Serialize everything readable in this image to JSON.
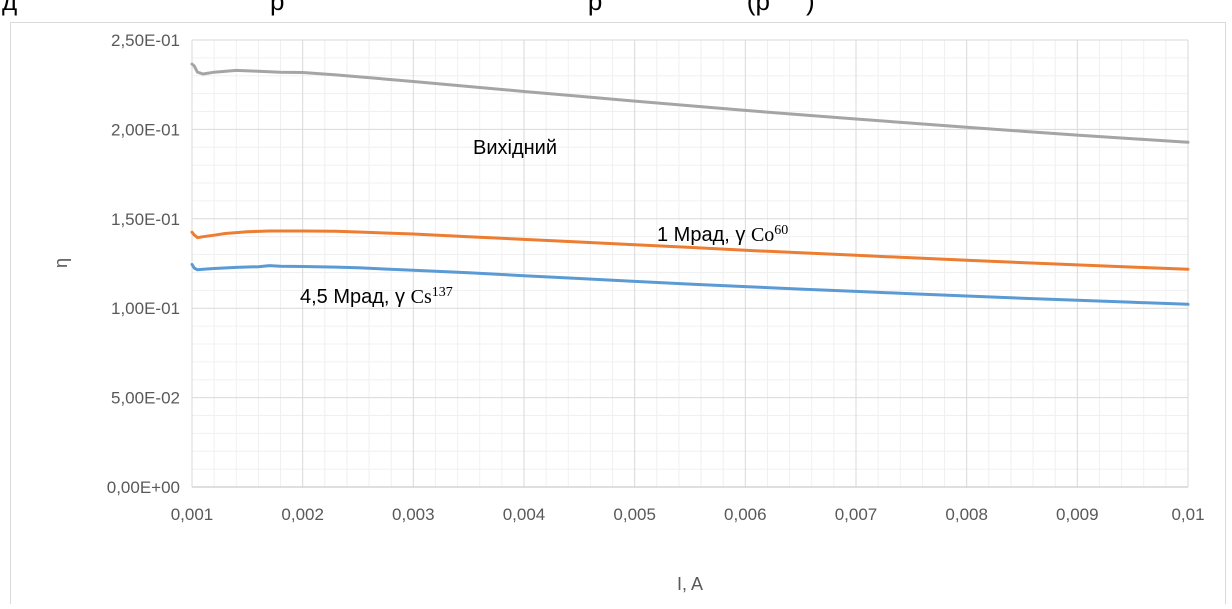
{
  "chart_data": {
    "type": "line",
    "xlabel": "I, A",
    "ylabel": "η",
    "xlim": [
      0.001,
      0.01
    ],
    "ylim": [
      0,
      0.25
    ],
    "grid": true,
    "x_ticks": [
      0.001,
      0.002,
      0.003,
      0.004,
      0.005,
      0.006,
      0.007,
      0.008,
      0.009,
      0.01
    ],
    "x_tick_labels": [
      "0,001",
      "0,002",
      "0,003",
      "0,004",
      "0,005",
      "0,006",
      "0,007",
      "0,008",
      "0,009",
      "0,01"
    ],
    "y_ticks": [
      0,
      0.05,
      0.1,
      0.15,
      0.2,
      0.25
    ],
    "y_tick_labels": [
      "0,00E+00",
      "5,00E-02",
      "1,00E-01",
      "1,50E-01",
      "2,00E-01",
      "2,50E-01"
    ],
    "series": [
      {
        "name": "Вихідний",
        "color": "#A5A5A5",
        "x": [
          0.001,
          0.00102,
          0.00105,
          0.0011,
          0.0012,
          0.0014,
          0.0016,
          0.0018,
          0.002,
          0.0023,
          0.0025,
          0.003,
          0.0035,
          0.004,
          0.0045,
          0.005,
          0.0055,
          0.006,
          0.0065,
          0.007,
          0.0075,
          0.008,
          0.0085,
          0.009,
          0.0095,
          0.01
        ],
        "y": [
          0.2365,
          0.2355,
          0.232,
          0.231,
          0.232,
          0.233,
          0.2325,
          0.232,
          0.2318,
          0.2305,
          0.2295,
          0.2268,
          0.224,
          0.2212,
          0.2185,
          0.2158,
          0.2132,
          0.2106,
          0.2082,
          0.2058,
          0.2035,
          0.2012,
          0.199,
          0.1968,
          0.1948,
          0.1928
        ]
      },
      {
        "name": "1 Мрад, γ Co⁶⁰",
        "color": "#ED7D31",
        "x": [
          0.001,
          0.00102,
          0.00105,
          0.0011,
          0.0012,
          0.0013,
          0.0015,
          0.0017,
          0.002,
          0.0023,
          0.0025,
          0.003,
          0.0035,
          0.004,
          0.0045,
          0.005,
          0.0055,
          0.006,
          0.0065,
          0.007,
          0.0075,
          0.008,
          0.0085,
          0.009,
          0.0095,
          0.01
        ],
        "y": [
          0.1425,
          0.141,
          0.1395,
          0.14,
          0.1408,
          0.1418,
          0.1428,
          0.1432,
          0.1432,
          0.143,
          0.1426,
          0.1415,
          0.14,
          0.1385,
          0.137,
          0.1355,
          0.134,
          0.1324,
          0.131,
          0.1296,
          0.1282,
          0.1268,
          0.1255,
          0.1242,
          0.123,
          0.1218
        ]
      },
      {
        "name": "4,5 Мрад, γ Cs¹³⁷",
        "color": "#5B9BD5",
        "x": [
          0.001,
          0.00102,
          0.00105,
          0.0011,
          0.0012,
          0.0014,
          0.0016,
          0.0017,
          0.0018,
          0.002,
          0.0023,
          0.0025,
          0.003,
          0.0035,
          0.004,
          0.0045,
          0.005,
          0.0055,
          0.006,
          0.0065,
          0.007,
          0.0075,
          0.008,
          0.0085,
          0.009,
          0.0095,
          0.01
        ],
        "y": [
          0.1245,
          0.1225,
          0.1215,
          0.1218,
          0.1222,
          0.1228,
          0.1232,
          0.1238,
          0.1235,
          0.1233,
          0.123,
          0.1226,
          0.1212,
          0.1198,
          0.1182,
          0.1166,
          0.115,
          0.1135,
          0.1121,
          0.1107,
          0.1094,
          0.1081,
          0.1068,
          0.1056,
          0.1044,
          0.1033,
          0.1022
        ]
      }
    ],
    "annotations": [
      {
        "id": "ann-vykhidnyi",
        "parts": [
          {
            "text": "Вихідний"
          }
        ]
      },
      {
        "id": "ann-co60",
        "parts": [
          {
            "text": "1 Мрад, γ "
          },
          {
            "text": "Co",
            "serif": true
          },
          {
            "text": "60",
            "sup": true,
            "serif": true
          }
        ]
      },
      {
        "id": "ann-cs137",
        "parts": [
          {
            "text": "4,5 Мрад, γ "
          },
          {
            "text": "Cs",
            "serif": true
          },
          {
            "text": "137",
            "sup": true,
            "serif": true
          }
        ]
      }
    ]
  },
  "cropped_text": "д                                   р                                          р                    (р     )"
}
